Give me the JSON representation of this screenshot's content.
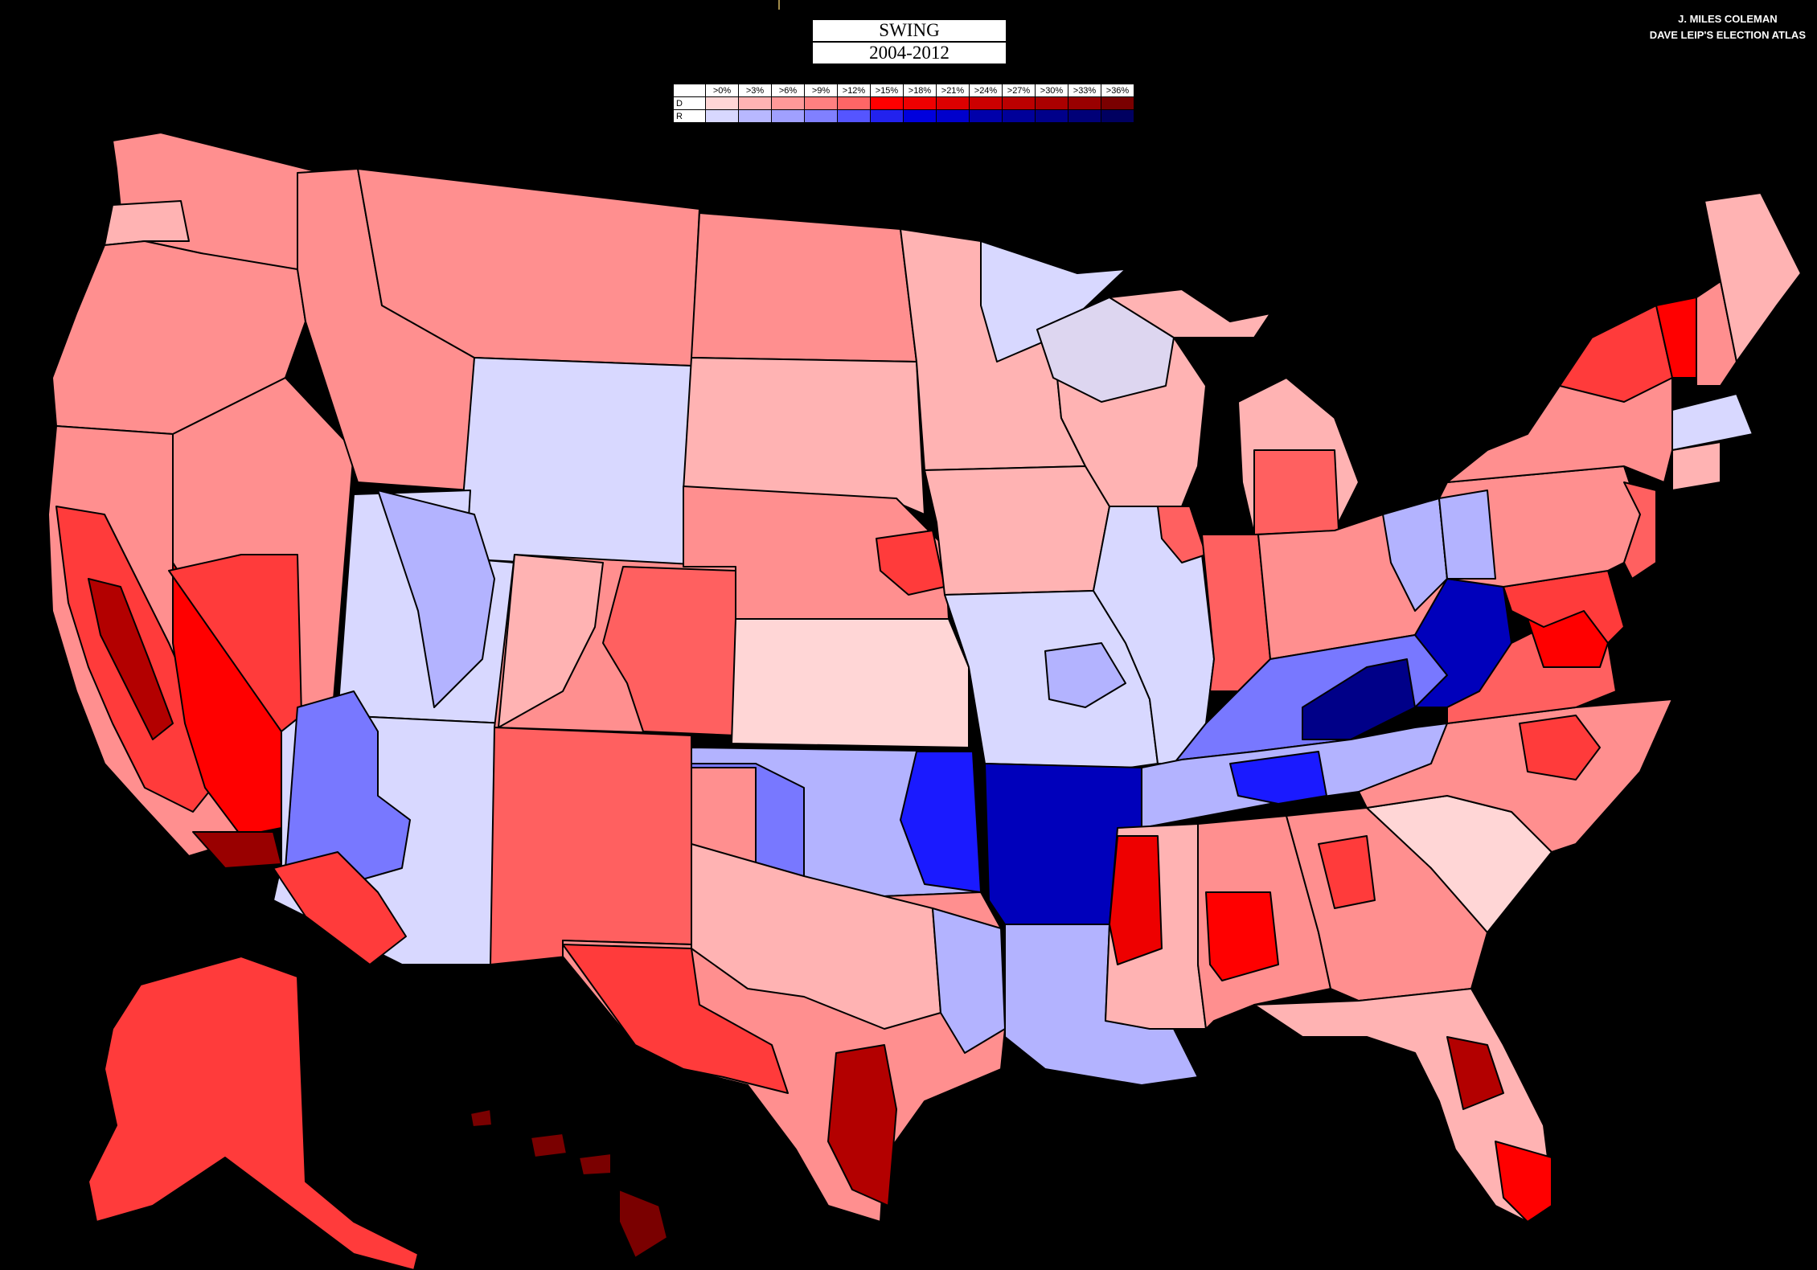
{
  "title": {
    "line1": "SWING",
    "line2": "2004-2012"
  },
  "credit": {
    "line1": "J. MILES COLEMAN",
    "line2": "DAVE LEIP'S ELECTION ATLAS"
  },
  "legend": {
    "thresholds": [
      ">0%",
      ">3%",
      ">6%",
      ">9%",
      ">12%",
      ">15%",
      ">18%",
      ">21%",
      ">24%",
      ">27%",
      ">30%",
      ">33%",
      ">36%"
    ],
    "rows": [
      {
        "label": "D",
        "colors": [
          "#ffd6d6",
          "#ffb3b3",
          "#ff9999",
          "#ff8080",
          "#ff6666",
          "#ff0000",
          "#ee0000",
          "#dd0000",
          "#cc0000",
          "#bb0000",
          "#aa0000",
          "#990000",
          "#7a0000"
        ]
      },
      {
        "label": "R",
        "colors": [
          "#d8d8ff",
          "#b8b8ff",
          "#a0a0ff",
          "#8080ff",
          "#5555ff",
          "#2222ee",
          "#0000dd",
          "#0000cc",
          "#0000aa",
          "#000099",
          "#00008a",
          "#000077",
          "#000060"
        ]
      }
    ]
  },
  "map": {
    "colors": {
      "background": "#000000",
      "d_light": "#ffd6d6",
      "d_3": "#ffb3b3",
      "d_6": "#ff8f8f",
      "d_12": "#ff3b3b",
      "d_15": "#ff0000",
      "d_dark": "#b30000",
      "d_darkest": "#7a0000",
      "r_light": "#d8d8ff",
      "r_3": "#b3b3ff",
      "r_9": "#7878ff",
      "r_15": "#1a1aff",
      "r_dark": "#0000bb",
      "r_darkest": "#000088"
    }
  }
}
